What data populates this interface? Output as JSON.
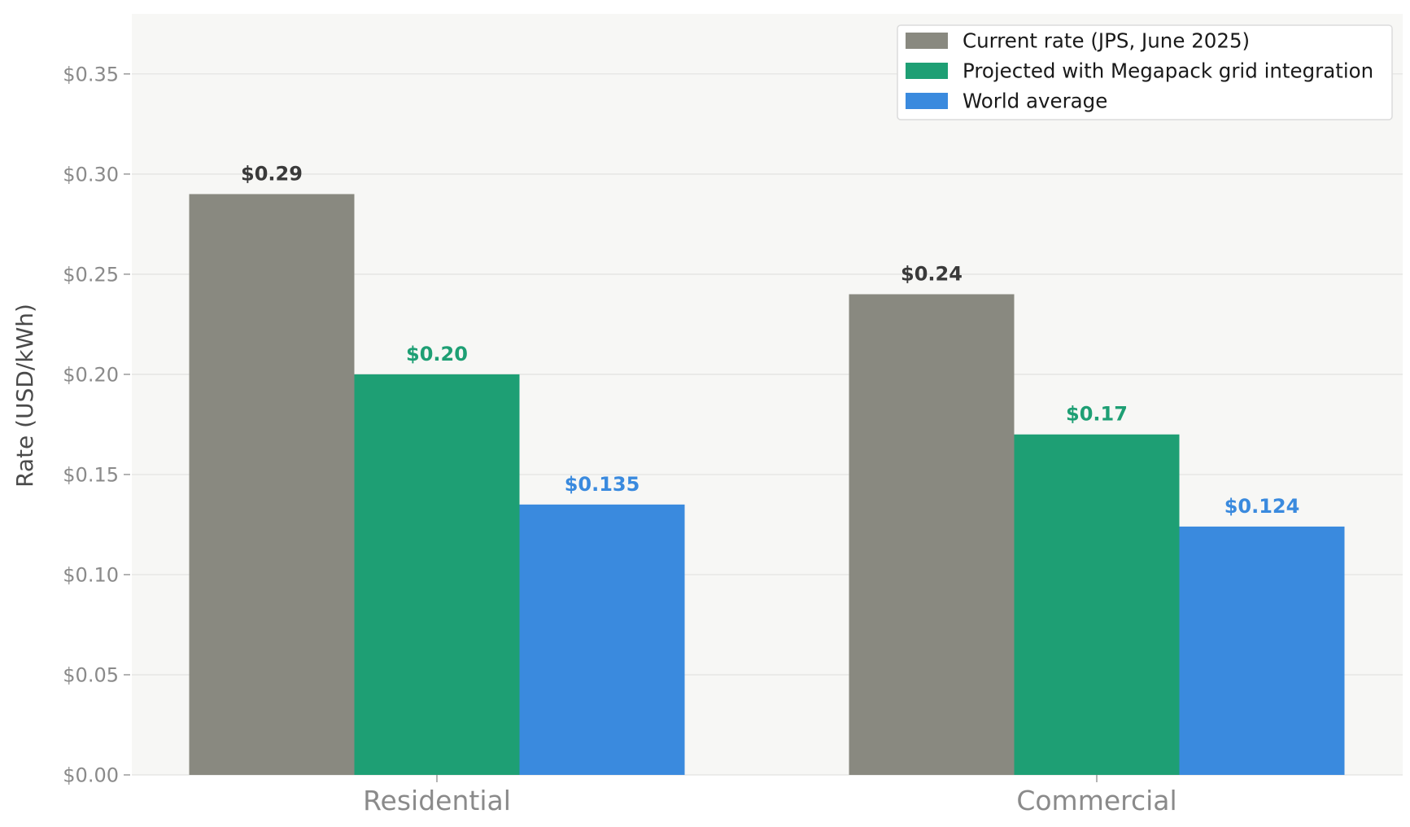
{
  "chart_data": {
    "type": "bar",
    "categories": [
      "Residential",
      "Commercial"
    ],
    "series": [
      {
        "name": "Current rate (JPS, June 2025)",
        "values": [
          0.29,
          0.24
        ],
        "labels": [
          "$0.29",
          "$0.24"
        ],
        "color": "#898980",
        "label_color": "#3a3a3a"
      },
      {
        "name": "Projected with Megapack grid integration",
        "values": [
          0.2,
          0.17
        ],
        "labels": [
          "$0.20",
          "$0.17"
        ],
        "color": "#1e9f74",
        "label_color": "#1e9f74"
      },
      {
        "name": "World average",
        "values": [
          0.135,
          0.124
        ],
        "labels": [
          "$0.135",
          "$0.124"
        ],
        "color": "#3a8ade",
        "label_color": "#3a8ade"
      }
    ],
    "ylabel": "Rate (USD/kWh)",
    "xlabel": "",
    "ylim": [
      0,
      0.38
    ],
    "yticks": [
      0,
      0.05,
      0.1,
      0.15,
      0.2,
      0.25,
      0.3,
      0.35
    ],
    "ytick_labels": [
      "$0.00",
      "$0.05",
      "$0.10",
      "$0.15",
      "$0.20",
      "$0.25",
      "$0.30",
      "$0.35"
    ],
    "grid": "horizontal",
    "legend_position": "top-right",
    "background": "#f7f7f5"
  }
}
